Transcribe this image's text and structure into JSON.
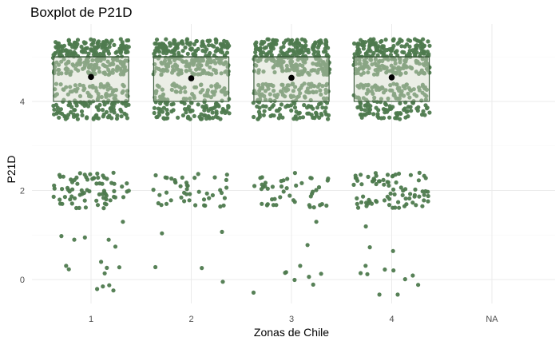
{
  "chart_data": {
    "type": "boxplot",
    "title": "Boxplot de P21D",
    "xlabel": "Zonas de Chile",
    "ylabel": "P21D",
    "categories": [
      "1",
      "2",
      "3",
      "4",
      "NA"
    ],
    "ylim": [
      -0.5,
      5.5
    ],
    "y_ticks": [
      0,
      2,
      4
    ],
    "grid": true,
    "legend": "none",
    "box_fill": "#d3dac7",
    "box_stroke": "#3f5f3f",
    "point_color": "#4e7a4e",
    "mean_color": "#000000",
    "boxes": [
      {
        "category": "1",
        "q1": 4,
        "median": 5,
        "q3": 5,
        "mean": 4.55
      },
      {
        "category": "2",
        "q1": 4,
        "median": 5,
        "q3": 5,
        "mean": 4.52
      },
      {
        "category": "3",
        "q1": 4,
        "median": 5,
        "q3": 5,
        "mean": 4.53
      },
      {
        "category": "4",
        "q1": 4,
        "median": 5,
        "q3": 5,
        "mean": 4.54
      }
    ],
    "points_note_values": [
      0,
      1,
      2,
      4,
      5
    ],
    "point_counts": [
      {
        "category": "1",
        "counts": {
          "0": 10,
          "1": 6,
          "2": 75,
          "4": 160,
          "5": 260
        }
      },
      {
        "category": "2",
        "counts": {
          "0": 3,
          "1": 2,
          "2": 45,
          "4": 160,
          "5": 260
        }
      },
      {
        "category": "3",
        "counts": {
          "0": 8,
          "1": 2,
          "2": 45,
          "4": 160,
          "5": 260
        }
      },
      {
        "category": "4",
        "counts": {
          "0": 10,
          "1": 3,
          "2": 80,
          "4": 160,
          "5": 260
        }
      }
    ]
  }
}
